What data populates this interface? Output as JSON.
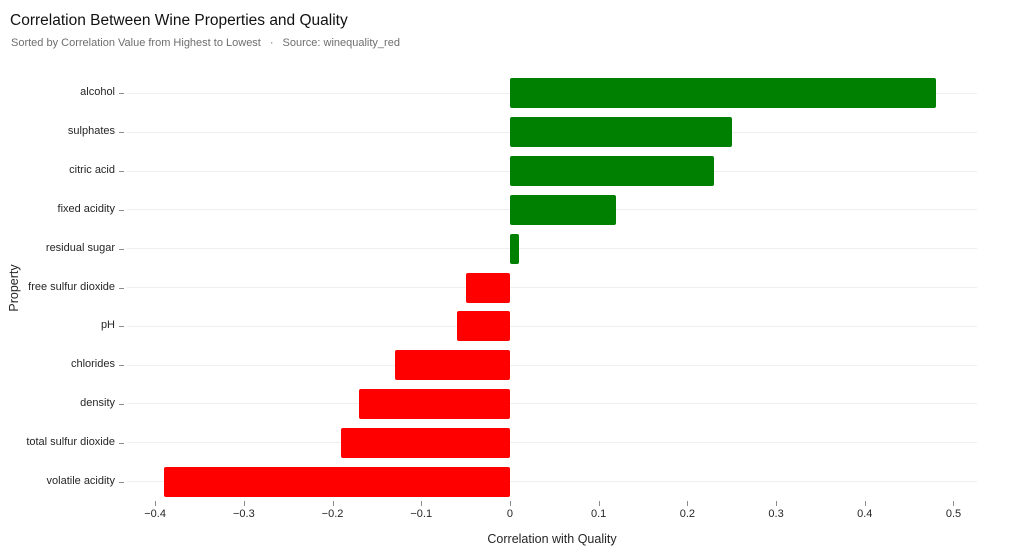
{
  "header": {
    "title": "Correlation Between Wine Properties and Quality",
    "subtitle_sort": "Sorted by Correlation Value from Highest to Lowest",
    "subtitle_separator": "·",
    "subtitle_source": "Source: winequality_red"
  },
  "chart_data": {
    "type": "bar",
    "orientation": "horizontal",
    "title": "Correlation Between Wine Properties and Quality",
    "subtitle": "Sorted by Correlation Value from Highest to Lowest · Source: winequality_red",
    "categories": [
      "alcohol",
      "sulphates",
      "citric acid",
      "fixed acidity",
      "residual sugar",
      "free sulfur dioxide",
      "pH",
      "chlorides",
      "density",
      "total sulfur dioxide",
      "volatile acidity"
    ],
    "values": [
      0.48,
      0.25,
      0.23,
      0.12,
      0.01,
      -0.05,
      -0.06,
      -0.13,
      -0.17,
      -0.19,
      -0.39
    ],
    "xlabel": "Correlation with Quality",
    "ylabel": "Property",
    "xlim": [
      -0.4317,
      0.5265
    ],
    "x_ticks": [
      -0.4,
      -0.3,
      -0.2,
      -0.1,
      0,
      0.1,
      0.2,
      0.3,
      0.4,
      0.5
    ],
    "x_tick_labels": [
      "−0.4",
      "−0.3",
      "−0.2",
      "−0.1",
      "0",
      "0.1",
      "0.2",
      "0.3",
      "0.4",
      "0.5"
    ],
    "positive_color": "#008000",
    "negative_color": "#ff0000",
    "grid": "horizontal-category-gridlines",
    "legend": "none",
    "sort": "descending by correlation"
  }
}
